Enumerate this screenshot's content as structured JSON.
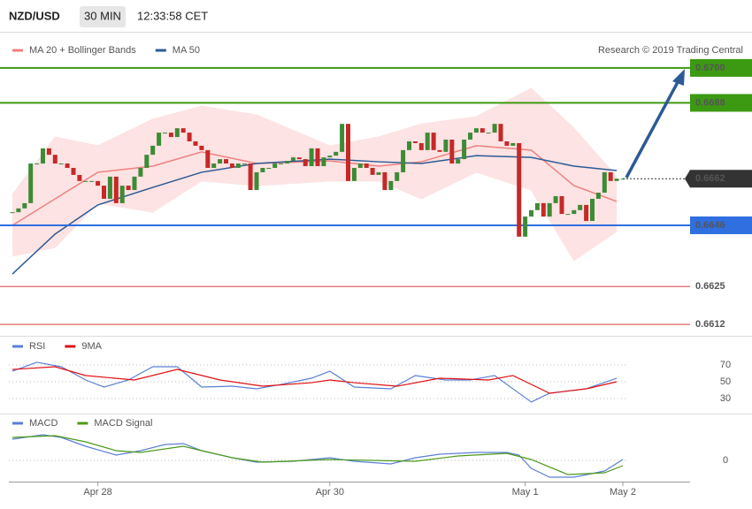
{
  "header": {
    "symbol": "NZD/USD",
    "timeframe": "30 MIN",
    "time": "12:33:58 CET"
  },
  "chart_data": [
    {
      "type": "candlestick",
      "credit": "Research © 2019 Trading Central",
      "categories": [
        null,
        null,
        null,
        null,
        null,
        null,
        null,
        null,
        null,
        null,
        null,
        null,
        null,
        null,
        "Apr 28",
        null,
        null,
        null,
        null,
        null,
        null,
        null,
        null,
        null,
        null,
        null,
        null,
        null,
        null,
        null,
        null,
        null,
        null,
        null,
        null,
        null,
        null,
        null,
        null,
        null,
        null,
        null,
        null,
        null,
        null,
        null,
        null,
        null,
        null,
        null,
        null,
        null,
        "Apr 30",
        null,
        null,
        null,
        null,
        null,
        null,
        null,
        null,
        null,
        null,
        null,
        null,
        null,
        null,
        null,
        null,
        null,
        null,
        null,
        null,
        null,
        null,
        null,
        null,
        null,
        null,
        null,
        null,
        null,
        null,
        null,
        "May 1",
        null,
        null,
        null,
        null,
        null,
        null,
        null,
        null,
        null,
        null,
        null,
        null,
        null,
        null,
        null,
        "May 2"
      ],
      "close": [
        0.66505,
        0.66518,
        0.66536,
        0.66672,
        0.66672,
        0.66724,
        0.66702,
        0.66672,
        0.66672,
        0.66657,
        0.66633,
        0.66612,
        0.66612,
        0.66612,
        0.66596,
        0.66551,
        0.66627,
        0.66536,
        0.66596,
        0.66581,
        0.66627,
        0.66657,
        0.66702,
        0.66733,
        0.66778,
        0.66778,
        0.66763,
        0.66793,
        0.66778,
        0.66748,
        0.66733,
        0.66718,
        0.66657,
        0.66672,
        0.66687,
        0.66672,
        0.66657,
        0.66672,
        0.66672,
        0.66581,
        0.66642,
        0.66657,
        0.66657,
        0.66672,
        0.66672,
        0.66681,
        0.66693,
        0.66687,
        0.66663,
        0.66724,
        0.66663,
        0.66693,
        0.66699,
        0.66712,
        0.66808,
        0.66612,
        0.66657,
        0.66672,
        0.66657,
        0.66633,
        0.66642,
        0.66581,
        0.66612,
        0.66642,
        0.66718,
        0.66748,
        0.66742,
        0.66718,
        0.66778,
        0.66718,
        0.66712,
        0.66754,
        0.66672,
        0.66687,
        0.66754,
        0.66778,
        0.66793,
        0.66778,
        0.66778,
        0.66808,
        0.66748,
        0.66733,
        0.66742,
        0.66421,
        0.6649,
        0.66512,
        0.66536,
        0.6649,
        0.66536,
        0.6656,
        0.66499,
        0.66499,
        0.66512,
        0.6653,
        0.66475,
        0.66551,
        0.66572,
        0.66642,
        0.66612,
        0.6662,
        0.6662
      ],
      "up_color": "#3d8b35",
      "down_color": "#c62828",
      "series": [
        {
          "name": "MA 20 + Bollinger Bands",
          "color": "#f08080",
          "band_color": "#fde3e3",
          "x": [
            0,
            7,
            14,
            23,
            31,
            40,
            52,
            60,
            67,
            76,
            85,
            92,
            99
          ],
          "values": [
            0.6646,
            0.66551,
            0.66642,
            0.66663,
            0.66712,
            0.66672,
            0.66681,
            0.66663,
            0.66678,
            0.66733,
            0.66718,
            0.66596,
            0.66542
          ],
          "upper": [
            0.66566,
            0.66763,
            0.66733,
            0.66824,
            0.66869,
            0.66839,
            0.66733,
            0.66763,
            0.66808,
            0.66833,
            0.6693,
            0.66793,
            0.66627
          ],
          "lower": [
            0.66354,
            0.66384,
            0.66536,
            0.66505,
            0.66612,
            0.66596,
            0.66612,
            0.66612,
            0.66551,
            0.66642,
            0.66581,
            0.66339,
            0.66439
          ]
        },
        {
          "name": "MA 50",
          "color": "#2c5a96",
          "x": [
            0,
            7,
            14,
            23,
            31,
            40,
            52,
            60,
            67,
            76,
            85,
            92,
            99
          ],
          "values": [
            0.66293,
            0.6643,
            0.6653,
            0.6659,
            0.66642,
            0.66672,
            0.66687,
            0.66678,
            0.66672,
            0.66699,
            0.66693,
            0.66663,
            0.66648
          ]
        }
      ],
      "ylim": [
        0.66087,
        0.67233
      ],
      "levels": [
        {
          "value": 0.67,
          "label": "0.6700",
          "color": "#3c9a12",
          "style": "box"
        },
        {
          "value": 0.6688,
          "label": "0.6688",
          "color": "#3c9a12",
          "style": "box"
        },
        {
          "value": 0.6646,
          "label": "0.6646",
          "color": "#2f6fe0",
          "style": "box"
        },
        {
          "value": 0.6625,
          "label": "0.6625",
          "color": "#e06464",
          "style": "text"
        },
        {
          "value": 0.6612,
          "label": "0.6612",
          "color": "#e06464",
          "style": "text"
        }
      ],
      "last": {
        "value": 0.6662,
        "label": "0.6662",
        "color": "#333333"
      }
    },
    {
      "type": "line",
      "series": [
        {
          "name": "RSI",
          "color": "#5b7fd6",
          "x": [
            0,
            4,
            8,
            12,
            15,
            19,
            23,
            27,
            31,
            36,
            40,
            44,
            49,
            52,
            56,
            62,
            66,
            71,
            75,
            79,
            84,
            85,
            88,
            94,
            99
          ],
          "values": [
            62.6,
            73.2,
            67.9,
            52.1,
            43.7,
            52.1,
            67.9,
            67.9,
            43.7,
            44.7,
            41.6,
            46.8,
            54.2,
            62.6,
            43.7,
            41.6,
            57.4,
            52.1,
            52.1,
            57.4,
            31.1,
            25.8,
            36.3,
            41.6,
            54.2
          ]
        },
        {
          "name": "9MA",
          "color": "#e01010",
          "x": [
            0,
            7,
            12,
            20,
            27,
            34,
            41,
            49,
            52,
            56,
            63,
            70,
            78,
            82,
            88,
            94,
            99
          ],
          "values": [
            64.7,
            67.9,
            57.4,
            52.1,
            64.7,
            52.1,
            44.7,
            48.9,
            52.1,
            48.9,
            44.7,
            54.2,
            52.1,
            57.4,
            36.3,
            41.6,
            50
          ]
        }
      ],
      "ylim": [
        18.4,
        99.5
      ],
      "yticks": [
        30,
        50,
        70
      ],
      "grid": true
    },
    {
      "type": "line",
      "series": [
        {
          "name": "MACD",
          "color": "#5b7fd6",
          "x": [
            0,
            5,
            8,
            12,
            17,
            21,
            25,
            28,
            31,
            36,
            40,
            46,
            52,
            56,
            62,
            66,
            70,
            76,
            81,
            83,
            85,
            88,
            92,
            97,
            100
          ],
          "values": [
            0.00024,
            0.00029,
            0.00026,
            0.00016,
            6e-05,
            0.00011,
            0.00018,
            0.00019,
            0.00011,
            3e-05,
            -2e-05,
            -1e-05,
            3e-05,
            -1e-05,
            -4e-05,
            3e-05,
            7e-05,
            9e-05,
            9e-05,
            6e-05,
            -9e-05,
            -0.00019,
            -0.00019,
            -0.00012,
            1e-05
          ]
        },
        {
          "name": "MACD Signal",
          "color": "#4c9a1a",
          "x": [
            0,
            7,
            12,
            17,
            21,
            28,
            31,
            36,
            41,
            52,
            59,
            66,
            73,
            81,
            85,
            91,
            97,
            100
          ],
          "values": [
            0.00026,
            0.00028,
            0.00021,
            0.00011,
            9e-05,
            0.00016,
            0.00011,
            3e-05,
            -2e-05,
            1e-05,
            0,
            -1e-05,
            5e-05,
            8e-05,
            1e-05,
            -0.00016,
            -0.00014,
            -6e-05
          ]
        }
      ],
      "ylim": [
        -0.00024,
        0.00043
      ],
      "yticks": [
        0
      ],
      "grid": true
    }
  ]
}
